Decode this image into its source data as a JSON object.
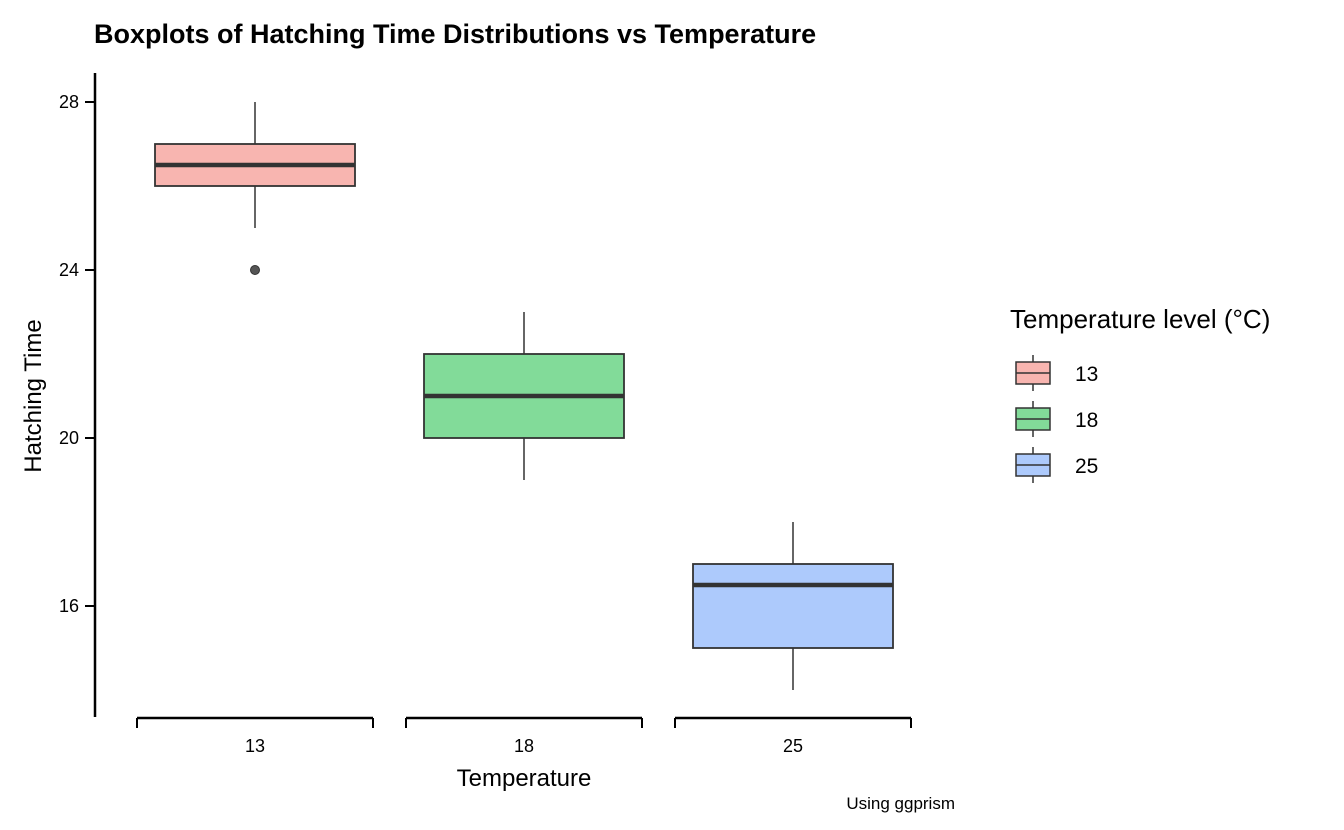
{
  "chart_data": {
    "type": "boxplot",
    "title": "Boxplots of Hatching Time Distributions vs Temperature",
    "xlabel": "Temperature",
    "ylabel": "Hatching Time",
    "caption": "Using ggprism",
    "categories": [
      "13",
      "18",
      "25"
    ],
    "ylim": [
      13.7,
      28.7
    ],
    "y_ticks": [
      16,
      20,
      24,
      28
    ],
    "grid": false,
    "legend": {
      "title": "Temperature level (°C)",
      "position": "right",
      "entries": [
        "13",
        "18",
        "25"
      ]
    },
    "colors": [
      "#F8B5B0",
      "#82DB99",
      "#ADCAFC"
    ],
    "boxes": [
      {
        "category": "13",
        "whisker_low": 25,
        "q1": 26,
        "median": 26.5,
        "q3": 27,
        "whisker_high": 28,
        "outliers": [
          24
        ]
      },
      {
        "category": "18",
        "whisker_low": 19,
        "q1": 20,
        "median": 21,
        "q3": 22,
        "whisker_high": 23,
        "outliers": []
      },
      {
        "category": "25",
        "whisker_low": 14,
        "q1": 15,
        "median": 16.5,
        "q3": 17,
        "whisker_high": 18,
        "outliers": []
      }
    ]
  }
}
